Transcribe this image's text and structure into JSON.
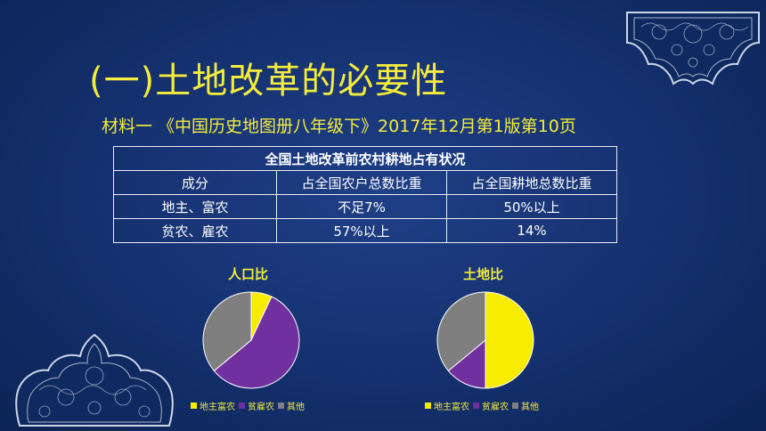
{
  "title": "(一)土地改革的必要性",
  "source": "材料一 《中国历史地图册八年级下》2017年12月第1版第10页",
  "table": {
    "caption": "全国土地改革前农村耕地占有状况",
    "headers": [
      "成分",
      "占全国农户总数比重",
      "占全国耕地总数比重"
    ],
    "rows": [
      [
        "地主、富农",
        "不足7%",
        "50%以上"
      ],
      [
        "贫农、雇农",
        "57%以上",
        "14%"
      ]
    ]
  },
  "colors": {
    "landlord": "#f7ec00",
    "poor": "#7030a0",
    "other": "#7f7f7f"
  },
  "chart_data": [
    {
      "type": "pie",
      "title": "人口比",
      "categories": [
        "地主富农",
        "贫雇农",
        "其他"
      ],
      "values": [
        7,
        57,
        36
      ]
    },
    {
      "type": "pie",
      "title": "土地比",
      "categories": [
        "地主富农",
        "贫雇农",
        "其他"
      ],
      "values": [
        50,
        14,
        36
      ]
    }
  ]
}
